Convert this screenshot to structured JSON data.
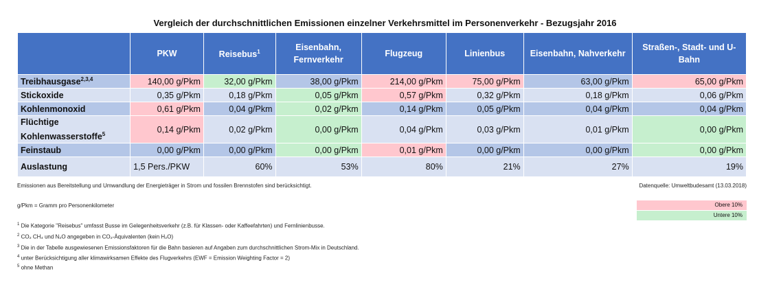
{
  "title": "Vergleich der durchschnittlichen Emissionen einzelner Verkehrsmittel im Personenverkehr - Bezugsjahr 2016",
  "columns": [
    "",
    "PKW",
    "Reisebus",
    "Eisenbahn, Fernverkehr",
    "Flugzeug",
    "Linienbus",
    "Eisenbahn, Nahverkehr",
    "Straßen-, Stadt- und U-Bahn"
  ],
  "column_sup": {
    "reisebus": "1"
  },
  "rows": [
    {
      "label": "Treibhausgase",
      "sup": "2,3,4",
      "values": [
        "140,00 g/Pkm",
        "32,00 g/Pkm",
        "38,00 g/Pkm",
        "214,00 g/Pkm",
        "75,00 g/Pkm",
        "63,00 g/Pkm",
        "65,00 g/Pkm"
      ]
    },
    {
      "label": "Stickoxide",
      "sup": "",
      "values": [
        "0,35 g/Pkm",
        "0,18 g/Pkm",
        "0,05 g/Pkm",
        "0,57 g/Pkm",
        "0,32 g/Pkm",
        "0,18 g/Pkm",
        "0,06 g/Pkm"
      ]
    },
    {
      "label": "Kohlenmonoxid",
      "sup": "",
      "values": [
        "0,61 g/Pkm",
        "0,04 g/Pkm",
        "0,02 g/Pkm",
        "0,14 g/Pkm",
        "0,05 g/Pkm",
        "0,04 g/Pkm",
        "0,04 g/Pkm"
      ]
    },
    {
      "label": "Flüchtige Kohlenwasserstoffe",
      "sup": "5",
      "values": [
        "0,14 g/Pkm",
        "0,02 g/Pkm",
        "0,00 g/Pkm",
        "0,04 g/Pkm",
        "0,03 g/Pkm",
        "0,01 g/Pkm",
        "0,00 g/Pkm"
      ]
    },
    {
      "label": "Feinstaub",
      "sup": "",
      "values": [
        "0,00 g/Pkm",
        "0,00 g/Pkm",
        "0,00 g/Pkm",
        "0,01 g/Pkm",
        "0,00 g/Pkm",
        "0,00 g/Pkm",
        "0,00 g/Pkm"
      ]
    },
    {
      "label": "Auslastung",
      "sup": "",
      "values": [
        "1,5 Pers./PKW",
        "60%",
        "53%",
        "80%",
        "21%",
        "27%",
        "19%"
      ]
    }
  ],
  "highlight_colors": {
    "red": "#ffc7ce",
    "green": "#c6efce",
    "header": "#4472c4",
    "band_dark": "#b4c6e7",
    "band_light": "#d9e1f2"
  },
  "notes": {
    "emissions_note": "Emissionen aus Bereitstellung und Umwandlung der Energieträger in Strom und fossilen Brennstofen sind berücksichtigt.",
    "source": "Datenquelle: Umweltbudesamt (13.03.2018)",
    "unit": "g/Pkm = Gramm pro Personenkilometer",
    "legend_top": "Obere 10%",
    "legend_bottom": "Untere 10%",
    "fn1_num": "1",
    "fn1": "Die Kategorie \"Reisebus\" umfasst Busse im Gelegenheitsverkehr (z.B. für Klassen- oder Kaffeefahrten) und Fernlinienbusse.",
    "fn2_num": "2",
    "fn2": "CO₂ CH₄ und N₂O angegeben in CO₂-Äquivalenten (kein H₂O)",
    "fn3_num": "3",
    "fn3": "Die in der Tabelle ausgewiesenen Emissionsfaktoren für die Bahn basieren auf Angaben zum durchschnittlichen Strom-Mix in Deutschland.",
    "fn4_num": "4",
    "fn4": "unter Berücksichtigung aller klimawirksamen Effekte des Flugverkehrs (EWF = Emission Weighting Factor = 2)",
    "fn5_num": "5",
    "fn5": "ohne Methan"
  }
}
